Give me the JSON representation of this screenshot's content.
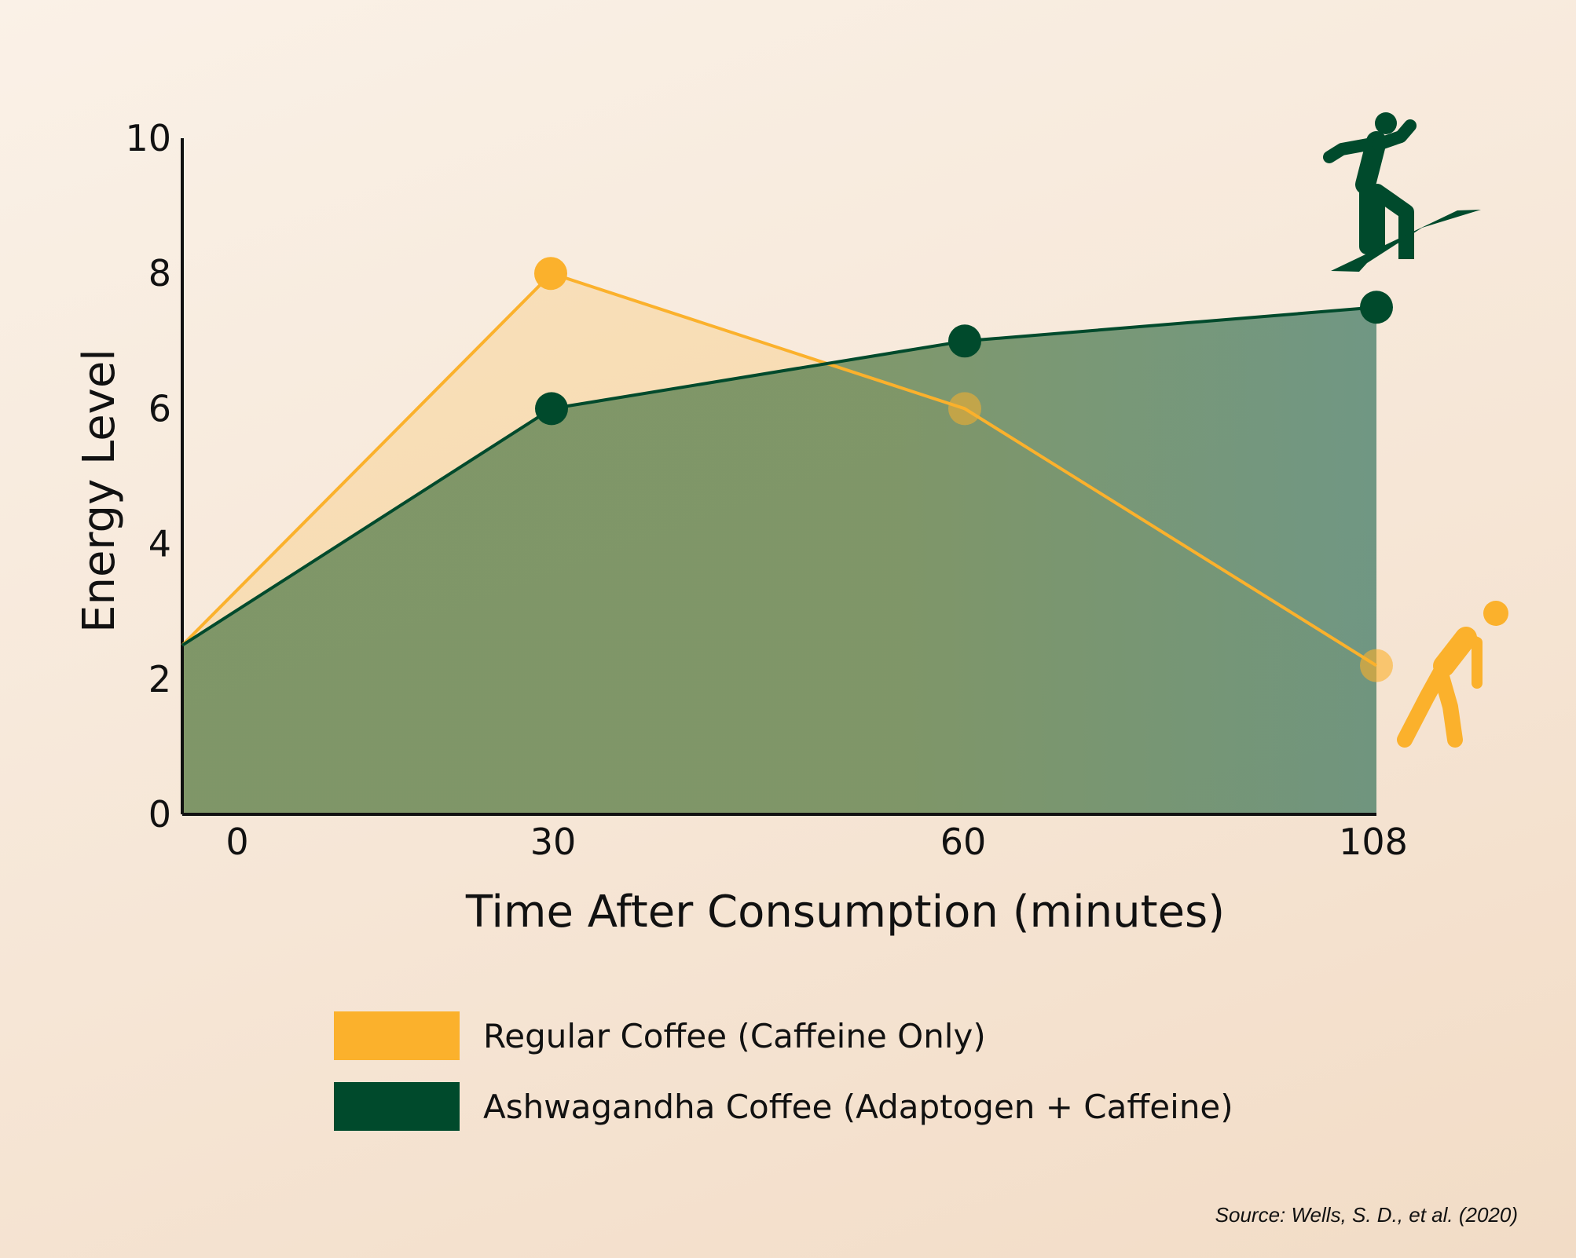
{
  "chart_data": {
    "type": "area",
    "xlabel": "Time After Consumption (minutes)",
    "ylabel": "Energy Level",
    "categories": [
      "0",
      "30",
      "60",
      "108"
    ],
    "ylim": [
      0,
      10
    ],
    "yticks": [
      0,
      2,
      4,
      6,
      8,
      10
    ],
    "grid": false,
    "legend_placement": "bottom",
    "series": [
      {
        "name": "Regular Coffee (Caffeine Only)",
        "color": "#fbb12c",
        "values": [
          2.5,
          8.0,
          6.0,
          2.2
        ],
        "icon": "tired-walker-icon"
      },
      {
        "name": "Ashwagandha Coffee (Adaptogen + Caffeine)",
        "color": "#004a2c",
        "values": [
          2.5,
          6.0,
          7.0,
          7.5
        ],
        "icon": "runner-climbing-icon"
      }
    ]
  },
  "source": "Source: Wells, S. D., et al. (2020)"
}
